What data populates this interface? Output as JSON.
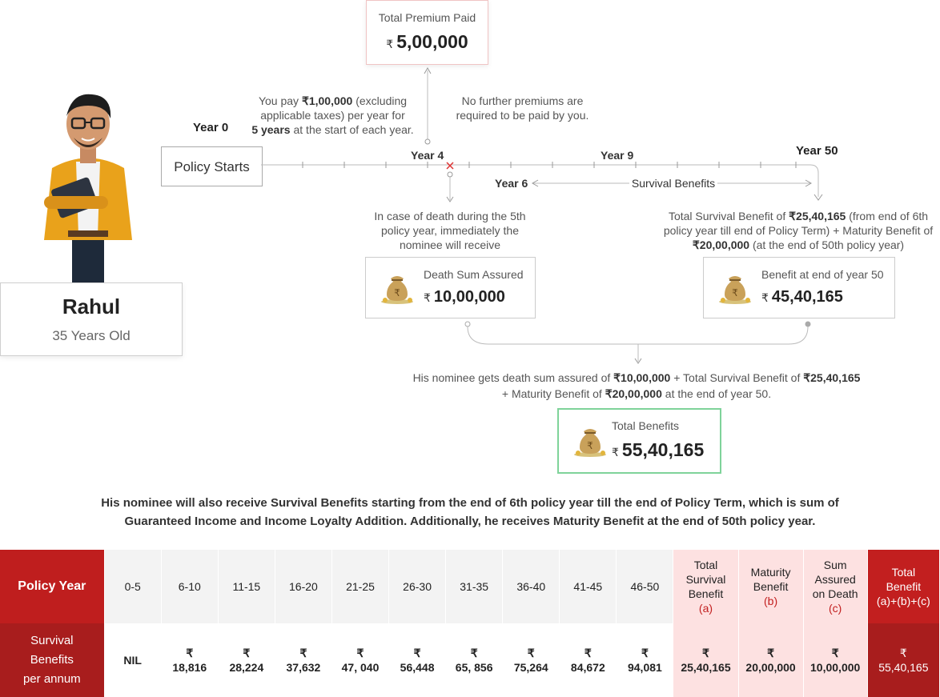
{
  "person": {
    "name": "Rahul",
    "age": "35 Years Old"
  },
  "premium_card": {
    "label": "Total Premium Paid",
    "currency": "₹",
    "value": "5,00,000"
  },
  "notes": {
    "pay_line1_pre": "You pay ",
    "pay_line1_amt": "₹1,00,000",
    "pay_line1_post": " (excluding",
    "pay_line2": "applicable taxes) per year for",
    "pay_line3_bold": "5 years",
    "pay_line3_post": " at the start of each year.",
    "no_further_1": "No further premiums are",
    "no_further_2": "required to be paid by you.",
    "death_1": "In case of death during the 5th",
    "death_2": "policy year, immediately the",
    "death_3": "nominee will receive",
    "surv_1_pre": "Total Survival Benefit of ",
    "surv_1_amt": "₹25,40,165",
    "surv_1_post": " (from end of 6th",
    "surv_2": "policy year till end of Policy Term) + Maturity Benefit of",
    "surv_3_amt": "₹20,00,000",
    "surv_3_post": " (at the end of 50th policy year)",
    "nominee_1_pre": "His  nominee gets death sum assured of ",
    "nominee_1_amt1": "₹10,00,000",
    "nominee_1_mid": " + Total Survival Benefit of ",
    "nominee_1_amt2": "₹25,40,165",
    "nominee_2_pre": "+ Maturity Benefit of ",
    "nominee_2_amt": "₹20,00,000",
    "nominee_2_post": " at the end of year 50."
  },
  "timeline": {
    "start_label": "Policy Starts",
    "year0": "Year 0",
    "year4": "Year 4",
    "year9": "Year 9",
    "year50": "Year 50",
    "year6": "Year 6",
    "survival_label": "Survival Benefits"
  },
  "death_card": {
    "label": "Death Sum Assured",
    "currency": "₹",
    "value": "10,00,000"
  },
  "benefit_card": {
    "label": "Benefit at end of year 50",
    "currency": "₹",
    "value": "45,40,165"
  },
  "total_card": {
    "label": "Total Benefits",
    "currency": "₹",
    "value": "55,40,165"
  },
  "summary": {
    "line1": "His nominee will also receive Survival Benefits starting from the end of 6th policy year till the end of Policy Term, which is sum of",
    "line2": "Guaranteed Income and Income Loyalty Addition. Additionally, he receives Maturity Benefit at the end of 50th policy year."
  },
  "table": {
    "row1_label": "Policy Year",
    "row2_label": [
      "Survival",
      "Benefits",
      "per  annum"
    ],
    "years": [
      "0-5",
      "6-10",
      "11-15",
      "16-20",
      "21-25",
      "26-30",
      "31-35",
      "36-40",
      "41-45",
      "46-50"
    ],
    "values": [
      "NIL",
      "18,816",
      "28,224",
      "37,632",
      "47, 040",
      "56,448",
      "65, 856",
      "75,264",
      "84,672",
      "94,081"
    ],
    "currency": "₹",
    "extra_headers": [
      {
        "lines": [
          "Total",
          "Survival",
          "Benefit"
        ],
        "sub": "(a)"
      },
      {
        "lines": [
          "Maturity",
          "Benefit"
        ],
        "sub": "(b)"
      },
      {
        "lines": [
          "Sum",
          "Assured",
          "on Death"
        ],
        "sub": "(c)"
      }
    ],
    "extra_values": [
      "25,40,165",
      "20,00,000",
      "10,00,000"
    ],
    "final_header": [
      "Total",
      "Benefit",
      "(a)+(b)+(c)"
    ],
    "final_value": "55,40,165"
  },
  "colors": {
    "brand_red": "#c21f1f",
    "pink": "#fde1e1",
    "green_border": "#7fd39a"
  },
  "icons": [
    "money-bag-icon",
    "death-cross-icon",
    "avatar"
  ]
}
